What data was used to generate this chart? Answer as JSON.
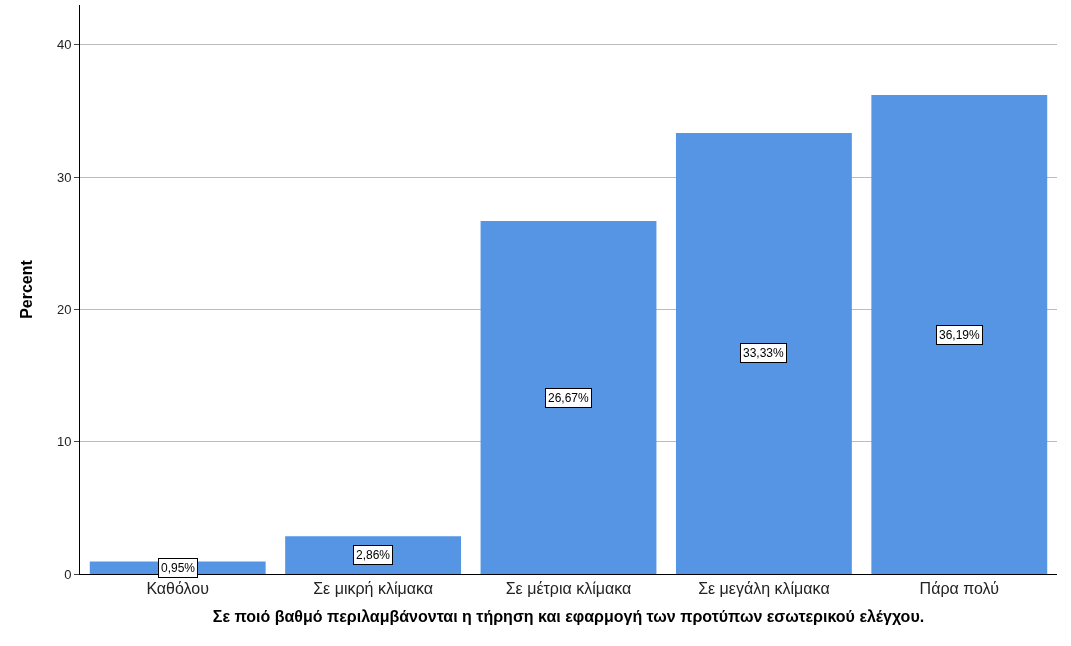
{
  "chart_data": {
    "type": "bar",
    "xlabel": "Σε ποιό βαθμό περιλαμβάνονται η τήρηση και εφαρμογή των προτύπων εσωτερικού ελέγχου.",
    "ylabel": "Percent",
    "categories": [
      "Καθόλου",
      "Σε μικρή κλίμακα",
      "Σε μέτρια κλίμακα",
      "Σε μεγάλη κλίμακα",
      "Πάρα πολύ"
    ],
    "values": [
      0.95,
      2.86,
      26.67,
      33.33,
      36.19
    ],
    "value_labels": [
      "0,95%",
      "2,86%",
      "26,67%",
      "33,33%",
      "36,19%"
    ],
    "color": "#5595e3",
    "ylim": [
      0,
      43
    ],
    "yticks": [
      0,
      10,
      20,
      30,
      40
    ],
    "grid": "y"
  }
}
